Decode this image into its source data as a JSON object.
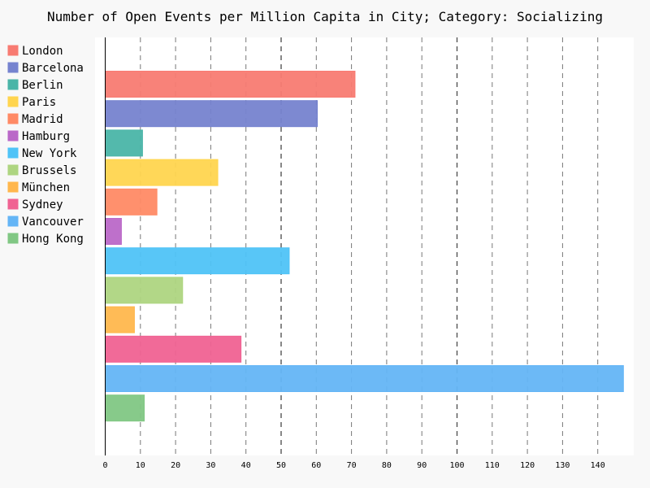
{
  "chart_data": {
    "type": "bar",
    "orientation": "horizontal",
    "title": "Number of Open Events per Million Capita in City; Category: Socializing",
    "xlabel": "",
    "ylabel": "",
    "xlim": [
      0,
      150
    ],
    "x_ticks": [
      0,
      10,
      20,
      30,
      40,
      50,
      60,
      70,
      80,
      90,
      100,
      110,
      120,
      130,
      140
    ],
    "major_ticks": [
      50,
      100
    ],
    "grid": "vertical-dashed",
    "legend_position": "left",
    "series": [
      {
        "name": "London",
        "value": 71.0,
        "color": "#F87B72"
      },
      {
        "name": "Barcelona",
        "value": 60.3,
        "color": "#7683CF"
      },
      {
        "name": "Berlin",
        "value": 10.6,
        "color": "#4AB5A8"
      },
      {
        "name": "Paris",
        "value": 32.0,
        "color": "#FFD54F"
      },
      {
        "name": "Madrid",
        "value": 14.7,
        "color": "#FF8A65"
      },
      {
        "name": "Hamburg",
        "value": 4.6,
        "color": "#BA68C8"
      },
      {
        "name": "New York",
        "value": 52.3,
        "color": "#4FC3F7"
      },
      {
        "name": "Brussels",
        "value": 22.0,
        "color": "#AED581"
      },
      {
        "name": "München",
        "value": 8.3,
        "color": "#FFB74D"
      },
      {
        "name": "Sydney",
        "value": 38.6,
        "color": "#F06292"
      },
      {
        "name": "Vancouver",
        "value": 147.3,
        "color": "#64B5F6"
      },
      {
        "name": "Hong Kong",
        "value": 11.1,
        "color": "#81C784"
      }
    ]
  }
}
